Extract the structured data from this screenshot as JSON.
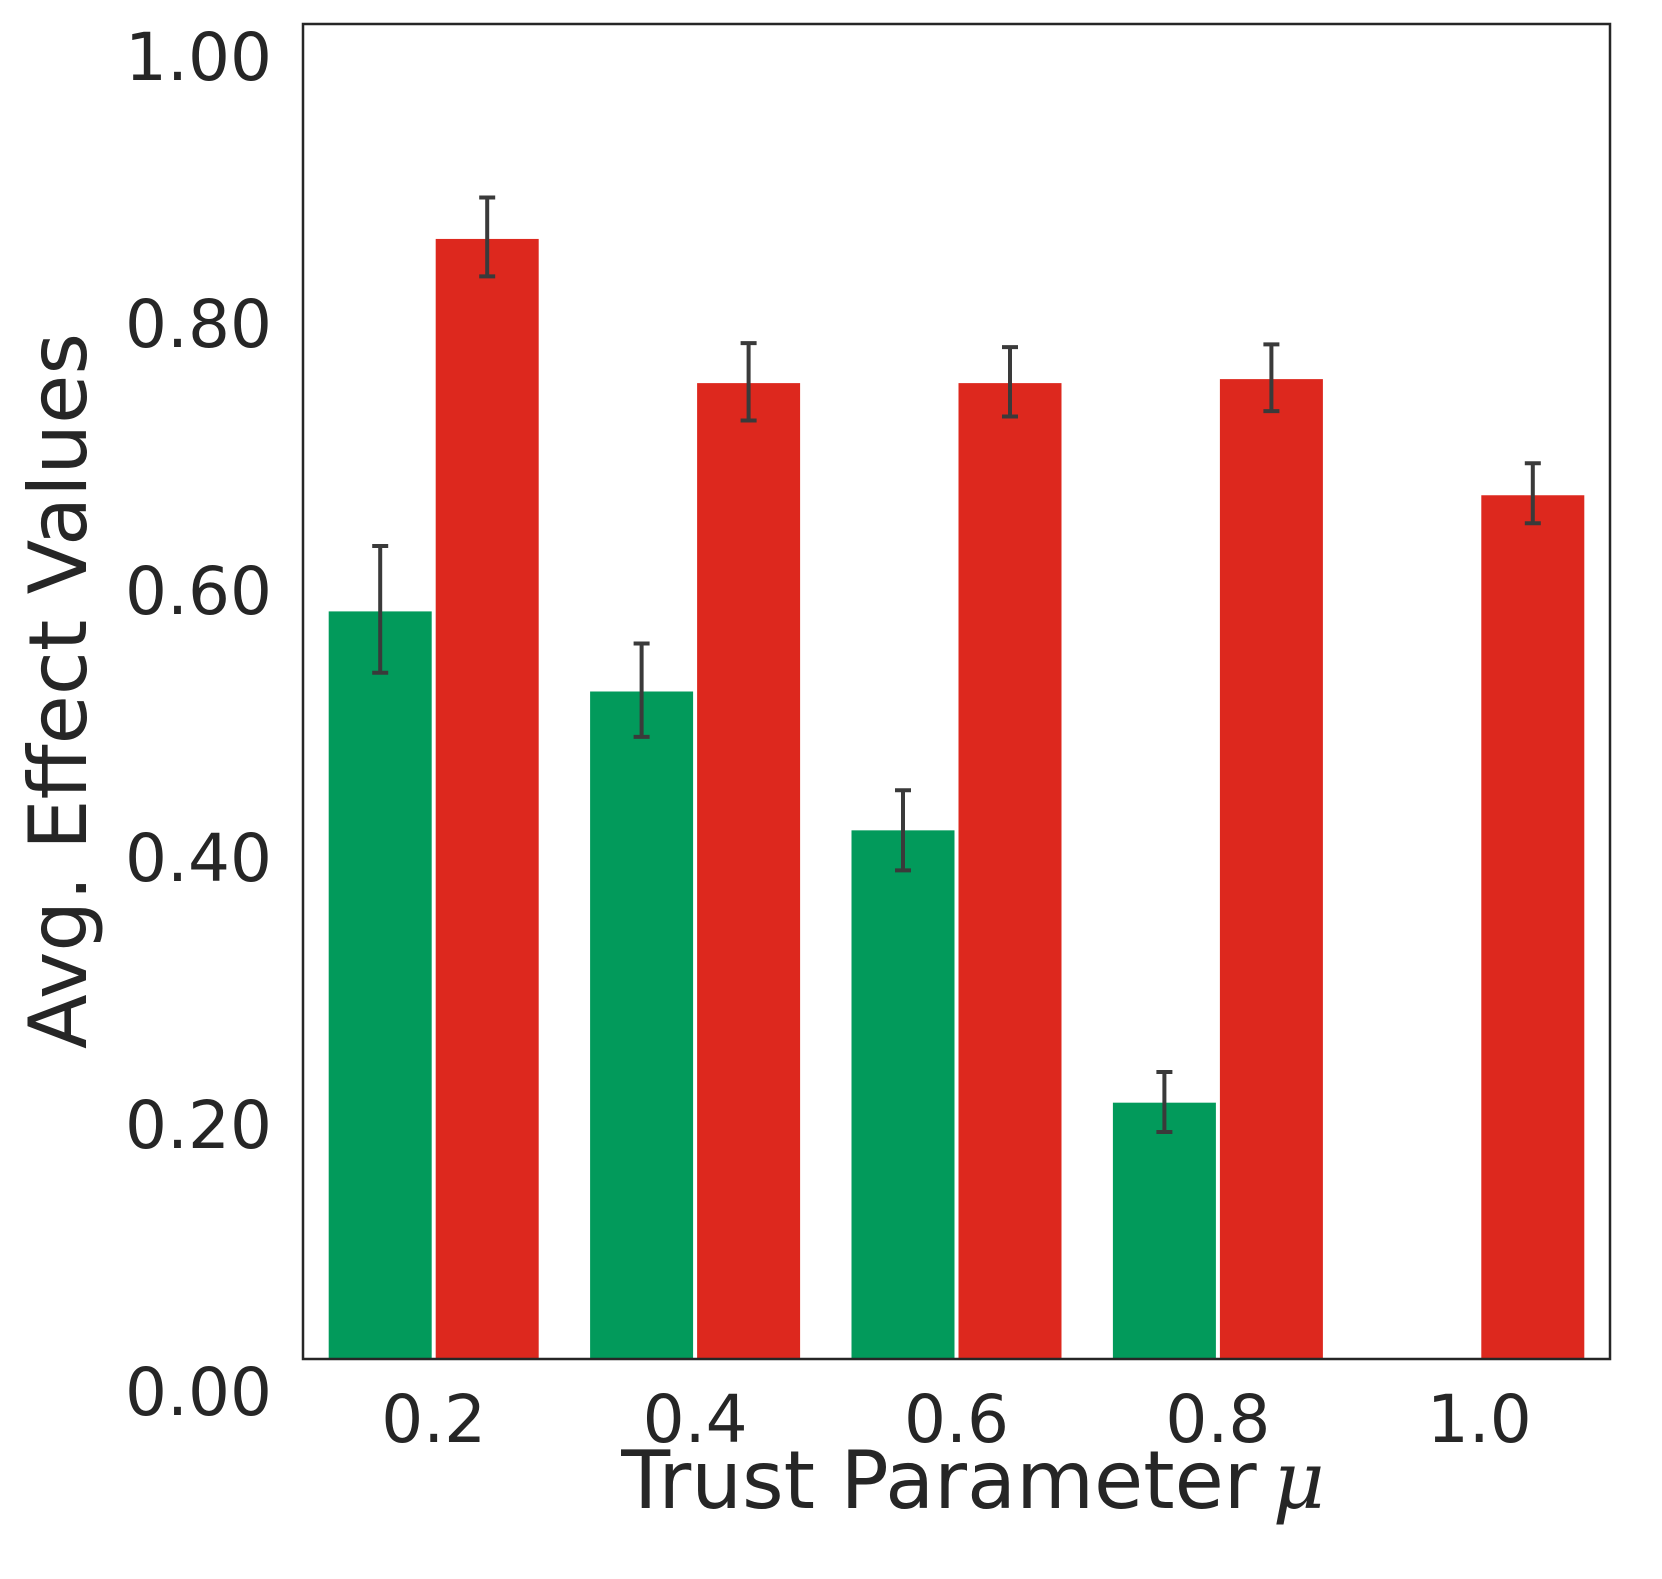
{
  "chart_data": {
    "type": "bar",
    "title": "",
    "xlabel": "Trust Parameter",
    "xlabel_symbol": "μ",
    "ylabel": "Avg. Effect Values",
    "categories": [
      "0.2",
      "0.4",
      "0.6",
      "0.8",
      "1.0"
    ],
    "yticks": [
      "0.00",
      "0.20",
      "0.40",
      "0.60",
      "0.80",
      "1.00"
    ],
    "ylim": [
      0,
      1.0
    ],
    "grid": false,
    "legend": "none",
    "series": [
      {
        "color": "#029a5b",
        "values": [
          0.56,
          0.5,
          0.396,
          0.192,
          0.0
        ],
        "err_low": [
          0.514,
          0.466,
          0.366,
          0.17,
          null
        ],
        "err_high": [
          0.609,
          0.536,
          0.426,
          0.215,
          null
        ]
      },
      {
        "color": "#dd281e",
        "values": [
          0.839,
          0.731,
          0.731,
          0.734,
          0.647
        ],
        "err_low": [
          0.811,
          0.703,
          0.706,
          0.71,
          0.626
        ],
        "err_high": [
          0.87,
          0.761,
          0.758,
          0.76,
          0.671
        ]
      }
    ]
  }
}
